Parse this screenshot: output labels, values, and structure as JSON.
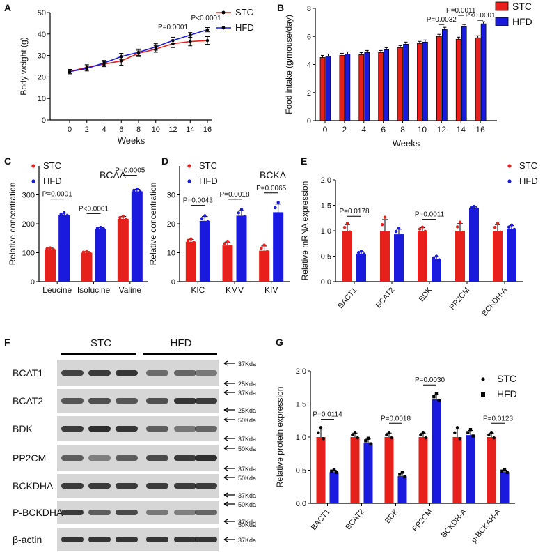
{
  "colors": {
    "stc": "#e8201c",
    "hfd": "#1a1adf",
    "blot_bg": "#d6d6d6",
    "band": "#202020"
  },
  "panels": {
    "A": {
      "label": "A",
      "chart_data": {
        "type": "line",
        "xlabel": "Weeks",
        "ylabel": "Body weight (g)",
        "x": [
          0,
          2,
          4,
          6,
          8,
          10,
          12,
          14,
          16
        ],
        "ylim": [
          0,
          50
        ],
        "yticks": [
          0,
          10,
          20,
          30,
          40,
          50
        ],
        "series": [
          {
            "name": "STC",
            "values": [
              22.5,
              24.5,
              26.0,
              27.5,
              31.0,
              33.0,
              35.5,
              36.5,
              37.0
            ],
            "err": [
              1.0,
              1.2,
              1.2,
              2.0,
              1.5,
              1.5,
              1.8,
              2.0,
              1.8
            ]
          },
          {
            "name": "HFD",
            "values": [
              22.5,
              24.0,
              26.5,
              29.5,
              31.5,
              34.0,
              37.0,
              39.5,
              42.0
            ],
            "err": [
              1.0,
              1.2,
              1.2,
              1.5,
              1.5,
              1.5,
              1.5,
              1.2,
              1.0
            ]
          }
        ],
        "annotations": [
          {
            "text": "P=0.0001",
            "at_x": 12
          },
          {
            "text": "P<0.0001",
            "at_x": 16
          }
        ]
      }
    },
    "B": {
      "label": "B",
      "chart_data": {
        "type": "bar",
        "xlabel": "Weeks",
        "ylabel": "Food intake (g/mouse/day)",
        "categories": [
          "0",
          "2",
          "4",
          "6",
          "8",
          "10",
          "12",
          "14",
          "16"
        ],
        "ylim": [
          0,
          8
        ],
        "yticks": [
          0,
          2,
          4,
          6,
          8
        ],
        "series": [
          {
            "name": "STC",
            "values": [
              4.5,
              4.65,
              4.7,
              4.85,
              5.2,
              5.5,
              6.0,
              5.8,
              5.9
            ]
          },
          {
            "name": "HFD",
            "values": [
              4.6,
              4.75,
              4.85,
              5.05,
              5.45,
              5.6,
              6.5,
              6.7,
              6.9
            ]
          }
        ],
        "annotations": [
          {
            "text": "P=0.0032",
            "cat": 6
          },
          {
            "text": "P=0.0011",
            "cat": 7
          },
          {
            "text": "P<0.0001",
            "cat": 8
          }
        ]
      }
    },
    "C": {
      "label": "C",
      "chart_data": {
        "type": "bar",
        "title": "BCAA",
        "ylabel": "Relative concentration",
        "categories": [
          "Leucine",
          "Isolucine",
          "Valine"
        ],
        "ylim": [
          0,
          400
        ],
        "yticks": [
          0,
          100,
          200,
          300
        ],
        "series": [
          {
            "name": "STC",
            "values": [
              112,
              100,
              217
            ],
            "err": [
              4,
              4,
              8
            ]
          },
          {
            "name": "HFD",
            "values": [
              230,
              183,
              312
            ],
            "err": [
              7,
              4,
              7
            ]
          }
        ],
        "annotations": [
          {
            "text": "P=0.0001",
            "cat": 0
          },
          {
            "text": "P<0.0001",
            "cat": 1
          },
          {
            "text": "P=0.0005",
            "cat": 2
          }
        ]
      }
    },
    "D": {
      "label": "D",
      "chart_data": {
        "type": "bar",
        "title": "BCKA",
        "ylabel": "Relative concentration",
        "categories": [
          "KIC",
          "KMV",
          "KIV"
        ],
        "ylim": [
          0,
          40
        ],
        "yticks": [
          0,
          10,
          20,
          30
        ],
        "series": [
          {
            "name": "STC",
            "values": [
              13.8,
              12.5,
              10.7
            ],
            "err": [
              0.8,
              1.2,
              1.6
            ]
          },
          {
            "name": "HFD",
            "values": [
              21.0,
              22.8,
              24.0
            ],
            "err": [
              1.5,
              1.8,
              2.8
            ]
          }
        ],
        "annotations": [
          {
            "text": "P=0.0043",
            "cat": 0
          },
          {
            "text": "P=0.0018",
            "cat": 1
          },
          {
            "text": "P=0.0065",
            "cat": 2
          }
        ]
      }
    },
    "E": {
      "label": "E",
      "chart_data": {
        "type": "bar",
        "ylabel": "Relative mRNA expression",
        "categories": [
          "BACT1",
          "BCAT2",
          "BDK",
          "PP2CM",
          "BCKDH-A"
        ],
        "ylim": [
          0,
          2.0
        ],
        "yticks": [
          0.0,
          0.5,
          1.0,
          1.5,
          2.0
        ],
        "series": [
          {
            "name": "STC",
            "values": [
              1.0,
              1.0,
              1.0,
              1.0,
              1.0
            ],
            "err": [
              0.12,
              0.22,
              0.06,
              0.14,
              0.12
            ]
          },
          {
            "name": "HFD",
            "values": [
              0.55,
              0.93,
              0.44,
              1.44,
              1.04
            ],
            "err": [
              0.04,
              0.1,
              0.05,
              0.03,
              0.06
            ]
          }
        ],
        "annotations": [
          {
            "text": "P=0.0178",
            "cat": 0
          },
          {
            "text": "P=0.0011",
            "cat": 2
          }
        ]
      }
    },
    "G": {
      "label": "G",
      "chart_data": {
        "type": "bar",
        "ylabel": "Relative protein expression",
        "categories": [
          "BACT1",
          "BCAT2",
          "BDK",
          "PP2CM",
          "BCKDH-A",
          "p-BCKAH-A"
        ],
        "ylim": [
          0,
          2.0
        ],
        "yticks": [
          0.0,
          0.5,
          1.0,
          1.5,
          2.0
        ],
        "series": [
          {
            "name": "STC",
            "values": [
              1.0,
              1.0,
              1.0,
              1.0,
              1.0,
              1.0
            ],
            "err": [
              0.12,
              0.06,
              0.06,
              0.06,
              0.12,
              0.06
            ]
          },
          {
            "name": "HFD",
            "values": [
              0.47,
              0.91,
              0.41,
              1.57,
              1.03,
              0.47
            ],
            "err": [
              0.03,
              0.06,
              0.05,
              0.07,
              0.07,
              0.03
            ]
          }
        ],
        "annotations": [
          {
            "text": "P=0.0114",
            "cat": 0
          },
          {
            "text": "P=0.0018",
            "cat": 2
          },
          {
            "text": "P=0.0030",
            "cat": 3
          },
          {
            "text": "P=0.0123",
            "cat": 5
          }
        ]
      }
    },
    "F": {
      "label": "F",
      "group_labels": [
        "STC",
        "HFD"
      ],
      "rows": [
        {
          "name": "BCAT1",
          "markers": [
            "37Kda",
            "25Kda"
          ],
          "intensity": [
            0.75,
            0.8,
            0.85,
            0.45,
            0.5,
            0.35
          ]
        },
        {
          "name": "BCAT2",
          "markers": [
            "37Kda",
            "25Kda"
          ],
          "intensity": [
            0.6,
            0.65,
            0.6,
            0.65,
            0.85,
            0.8
          ]
        },
        {
          "name": "BDK",
          "markers": [
            "50Kda",
            "37Kda"
          ],
          "intensity": [
            0.8,
            0.9,
            0.85,
            0.55,
            0.35,
            0.5
          ]
        },
        {
          "name": "PP2CM",
          "markers": [
            "50Kda",
            "37Kda"
          ],
          "intensity": [
            0.55,
            0.3,
            0.55,
            0.7,
            0.8,
            0.9
          ]
        },
        {
          "name": "BCKDHA",
          "markers": [
            "50Kda",
            "37Kda"
          ],
          "intensity": [
            0.8,
            0.8,
            0.8,
            0.8,
            0.8,
            0.8
          ]
        },
        {
          "name": "P-BCKDHA",
          "markers": [
            "50Kda",
            "37Kda"
          ],
          "intensity": [
            0.8,
            0.55,
            0.7,
            0.35,
            0.3,
            0.5
          ]
        },
        {
          "name": "β-actin",
          "markers": [
            "37Kda"
          ],
          "intensity": [
            0.85,
            0.85,
            0.85,
            0.85,
            0.85,
            0.85
          ]
        }
      ],
      "extra_marker": "50Kda"
    }
  }
}
